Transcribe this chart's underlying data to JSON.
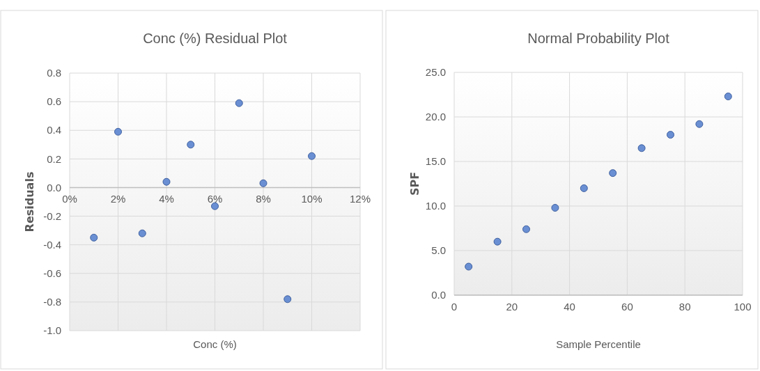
{
  "chart_data": [
    {
      "type": "scatter",
      "title": "Conc (%)  Residual Plot",
      "xlabel": "Conc (%)",
      "ylabel": "Residuals",
      "x": [
        1,
        2,
        3,
        4,
        5,
        6,
        7,
        8,
        9,
        10
      ],
      "values": [
        -0.35,
        0.39,
        -0.32,
        0.04,
        0.3,
        -0.13,
        0.59,
        0.03,
        -0.78,
        0.22
      ],
      "color": "#6a8fd3",
      "marker": "circle",
      "grid": true,
      "xlim": [
        0,
        12
      ],
      "xticks": [
        {
          "value": 0,
          "label": "0%"
        },
        {
          "value": 2,
          "label": "2%"
        },
        {
          "value": 4,
          "label": "4%"
        },
        {
          "value": 6,
          "label": "6%"
        },
        {
          "value": 8,
          "label": "8%"
        },
        {
          "value": 10,
          "label": "10%"
        },
        {
          "value": 12,
          "label": "12%"
        }
      ],
      "ylim": [
        -1,
        0.8
      ],
      "yticks": [
        {
          "value": -1,
          "label": "-1.0"
        },
        -0.8,
        -0.6,
        -0.4,
        -0.2,
        {
          "value": 0,
          "label": "0.0"
        },
        0.2,
        0.4,
        0.6,
        0.8
      ]
    },
    {
      "type": "scatter",
      "title": "Normal Probability Plot",
      "xlabel": "Sample Percentile",
      "ylabel": "SPF",
      "x": [
        5,
        15,
        25,
        35,
        45,
        55,
        65,
        75,
        85,
        95
      ],
      "values": [
        3.2,
        6.0,
        7.4,
        9.8,
        12.0,
        13.7,
        16.5,
        18.0,
        19.2,
        22.3
      ],
      "color": "#6a8fd3",
      "marker": "circle",
      "grid": true,
      "xlim": [
        0,
        100
      ],
      "xticks": [
        0,
        20,
        40,
        60,
        80,
        100
      ],
      "ylim": [
        0,
        25
      ],
      "yticks": [
        {
          "value": 0,
          "label": "0.0"
        },
        {
          "value": 5,
          "label": "5.0"
        },
        {
          "value": 10,
          "label": "10.0"
        },
        {
          "value": 15,
          "label": "15.0"
        },
        {
          "value": 20,
          "label": "20.0"
        },
        {
          "value": 25,
          "label": "25.0"
        }
      ]
    }
  ]
}
